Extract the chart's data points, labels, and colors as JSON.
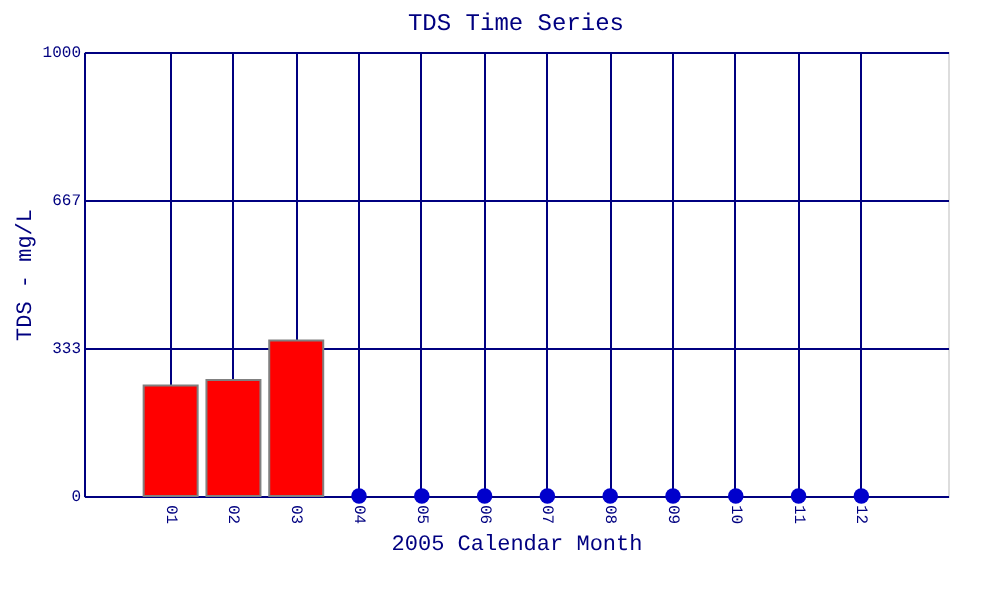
{
  "chart_data": {
    "type": "bar",
    "title": "TDS Time Series",
    "xlabel": "2005 Calendar Month",
    "ylabel": "TDS - mg/L",
    "categories": [
      "01",
      "02",
      "03",
      "04",
      "05",
      "06",
      "07",
      "08",
      "09",
      "10",
      "11",
      "12"
    ],
    "series": [
      {
        "color": "#ff0000",
        "values": [
          249,
          261,
          350,
          null,
          null,
          null,
          null,
          null,
          null,
          null,
          null,
          null
        ]
      },
      {
        "type": "scatter",
        "color": "#0000cc",
        "x": [
          "04",
          "05",
          "06",
          "07",
          "08",
          "09",
          "10",
          "11",
          "12"
        ],
        "values": [
          0,
          0,
          0,
          0,
          0,
          0,
          0,
          0,
          0
        ]
      }
    ],
    "ylim": [
      0,
      1000
    ],
    "yticks": [
      0,
      333,
      667,
      1000
    ],
    "grid": true,
    "marker": "circle"
  }
}
